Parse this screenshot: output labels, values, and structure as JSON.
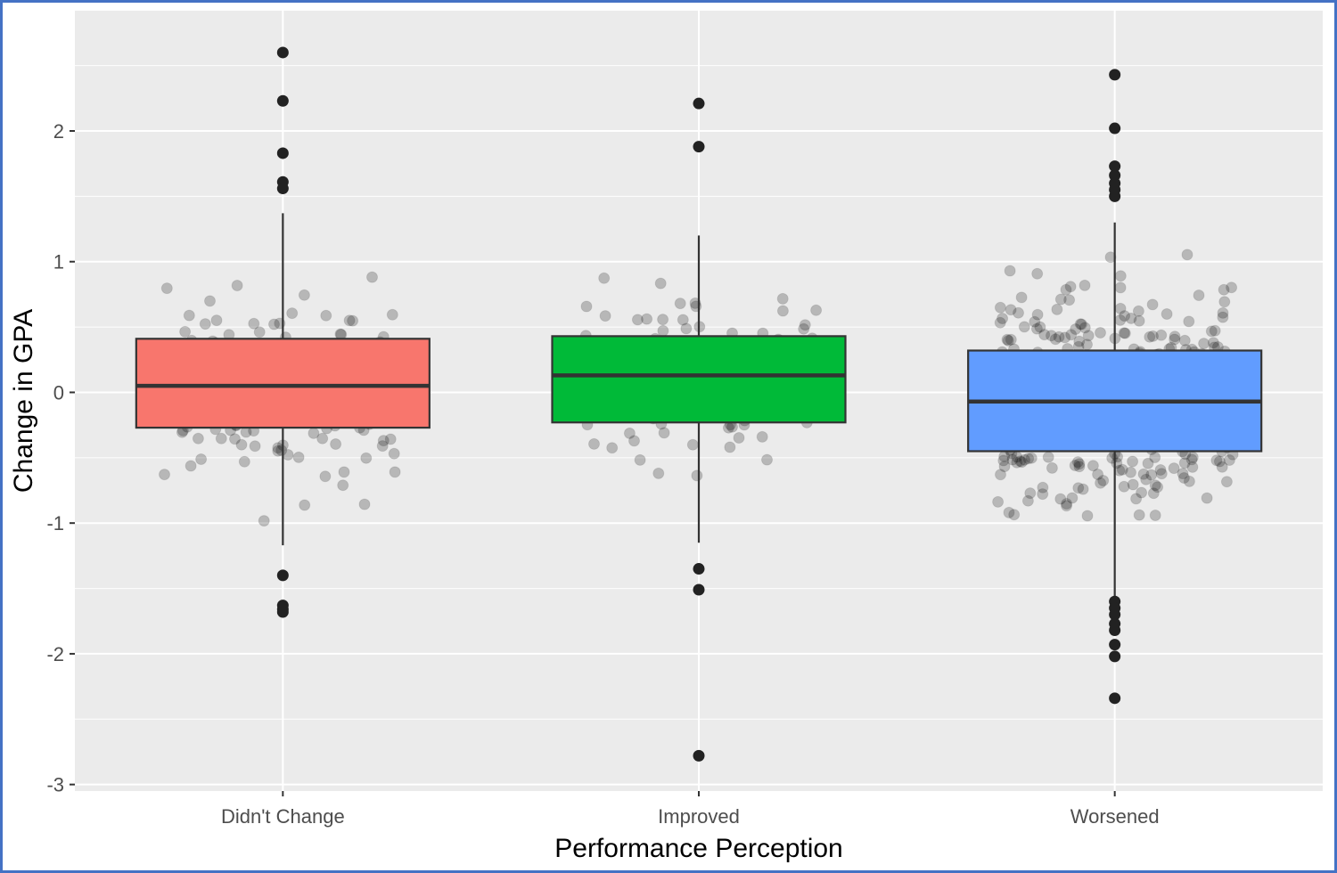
{
  "chart_data": {
    "type": "boxplot",
    "xlabel": "Performance Perception",
    "ylabel": "Change in GPA",
    "categories": [
      "Didn't Change",
      "Improved",
      "Worsened"
    ],
    "ylim": [
      -3.05,
      2.92
    ],
    "yticks": [
      -3,
      -2,
      -1,
      0,
      1,
      2
    ],
    "grid": true,
    "colors": {
      "Didn't Change": "#f8766d",
      "Improved": "#00ba38",
      "Worsened": "#619cff",
      "panel": "#ebebeb",
      "grid": "#ffffff"
    },
    "boxes": [
      {
        "category": "Didn't Change",
        "q1": -0.27,
        "median": 0.05,
        "q3": 0.41,
        "whisker_low": -1.17,
        "whisker_high": 1.37,
        "outliers": [
          2.6,
          2.23,
          1.83,
          1.61,
          1.56,
          -1.4,
          -1.63,
          -1.66,
          -1.68
        ]
      },
      {
        "category": "Improved",
        "q1": -0.23,
        "median": 0.13,
        "q3": 0.43,
        "whisker_low": -1.15,
        "whisker_high": 1.2,
        "outliers": [
          2.21,
          1.88,
          -1.35,
          -1.51,
          -2.78
        ]
      },
      {
        "category": "Worsened",
        "q1": -0.45,
        "median": -0.07,
        "q3": 0.32,
        "whisker_low": -1.57,
        "whisker_high": 1.3,
        "outliers": [
          2.43,
          2.02,
          1.73,
          1.66,
          1.6,
          1.55,
          1.5,
          -1.6,
          -1.65,
          -1.7,
          -1.77,
          -1.82,
          -1.93,
          -2.02,
          -2.34
        ]
      }
    ]
  }
}
